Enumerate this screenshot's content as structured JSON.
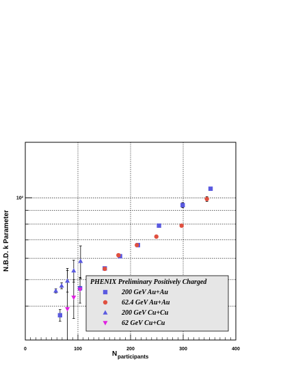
{
  "chart_data": {
    "type": "scatter",
    "xlabel": "N",
    "xlabel_subscript": "participants",
    "ylabel": "N.B.D. k Parameter",
    "xlim": [
      0,
      400
    ],
    "ylim": [
      30,
      160
    ],
    "yscale": "log",
    "x_ticks": [
      "0",
      "100",
      "200",
      "300",
      "400"
    ],
    "y_tick_label": "10²",
    "grid": true,
    "legend": {
      "title": "PHENIX Preliminary Positively Charged",
      "placement": "bottom-right"
    },
    "series": [
      {
        "name": "200 GeV Au+Au",
        "marker": "square",
        "color": "#5a5ae0",
        "points": [
          {
            "x": 66,
            "y": 37.0,
            "err": 1.8
          },
          {
            "x": 104,
            "y": 46.5,
            "err": 0.8
          },
          {
            "x": 124,
            "y": 49.0,
            "err": 0.5
          },
          {
            "x": 151,
            "y": 55.0,
            "err": 0.5
          },
          {
            "x": 180,
            "y": 61.0,
            "err": 0.5
          },
          {
            "x": 214,
            "y": 67.0,
            "err": 0.6
          },
          {
            "x": 254,
            "y": 79.0,
            "err": 1.0
          },
          {
            "x": 299,
            "y": 94.0,
            "err": 2.0
          },
          {
            "x": 352,
            "y": 108.0,
            "err": 1.5
          }
        ]
      },
      {
        "name": "62.4 GeV Au+Au",
        "marker": "circle",
        "color": "#e05040",
        "points": [
          {
            "x": 123,
            "y": 48.7,
            "err": 0.4
          },
          {
            "x": 151,
            "y": 54.8,
            "err": 0.4
          },
          {
            "x": 177,
            "y": 61.5,
            "err": 0.5
          },
          {
            "x": 212,
            "y": 67.0,
            "err": 0.5
          },
          {
            "x": 249,
            "y": 72.0,
            "err": 0.5
          },
          {
            "x": 297,
            "y": 79.0,
            "err": 1.0
          },
          {
            "x": 345,
            "y": 99.0,
            "err": 2.0
          }
        ]
      },
      {
        "name": "200 GeV Cu+Cu",
        "marker": "triangle-up",
        "color": "#5a5ae0",
        "points": [
          {
            "x": 58,
            "y": 45.5,
            "err": 0.8
          },
          {
            "x": 69,
            "y": 47.5,
            "err": 1.2
          },
          {
            "x": 80,
            "y": 49.5,
            "err": 4.5
          },
          {
            "x": 92,
            "y": 54.0,
            "err": 5.0
          },
          {
            "x": 105,
            "y": 58.5,
            "err": 8.0
          }
        ]
      },
      {
        "name": "62 GeV Cu+Cu",
        "marker": "triangle-down",
        "color": "#e020e0",
        "points": [
          {
            "x": 80,
            "y": 39.0,
            "err": 16.0
          },
          {
            "x": 92,
            "y": 43.0,
            "err": 7.0
          },
          {
            "x": 104,
            "y": 46.0,
            "err": 5.0
          }
        ]
      }
    ]
  }
}
